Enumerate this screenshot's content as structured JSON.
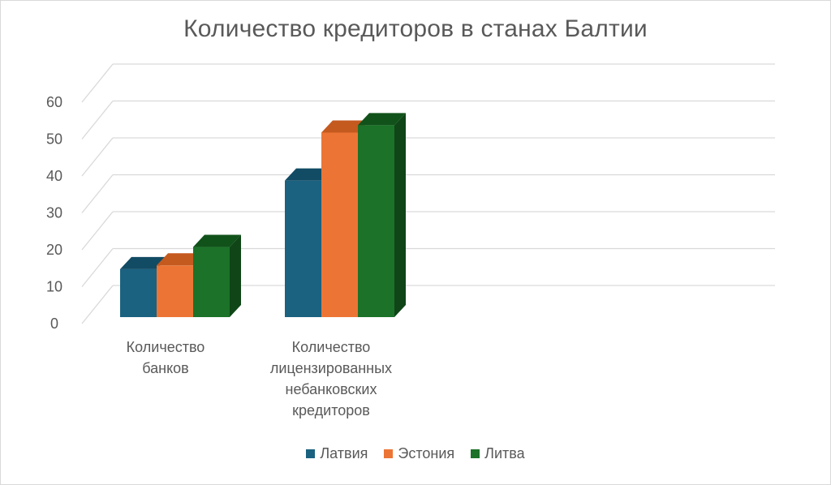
{
  "chart_data": {
    "type": "bar",
    "title": "Количество кредиторов в станах Балтии",
    "categories": [
      [
        "Количество",
        "банков"
      ],
      [
        "Количество",
        "лицензированных",
        "небанковских",
        "кредиторов"
      ]
    ],
    "series": [
      {
        "name": "Латвия",
        "values": [
          13,
          37
        ],
        "color": "#1a6280",
        "side": "#0e3f55",
        "top": "#124b64"
      },
      {
        "name": "Эстония",
        "values": [
          14,
          50
        ],
        "color": "#ec7535",
        "side": "#b9531d",
        "top": "#c55a1f"
      },
      {
        "name": "Литва",
        "values": [
          19,
          52
        ],
        "color": "#1b7228",
        "side": "#0f4517",
        "top": "#11521a"
      }
    ],
    "ylim": [
      0,
      60
    ],
    "yticks": [
      0,
      10,
      20,
      30,
      40,
      50,
      60
    ],
    "grid": true,
    "legend_position": "bottom"
  }
}
